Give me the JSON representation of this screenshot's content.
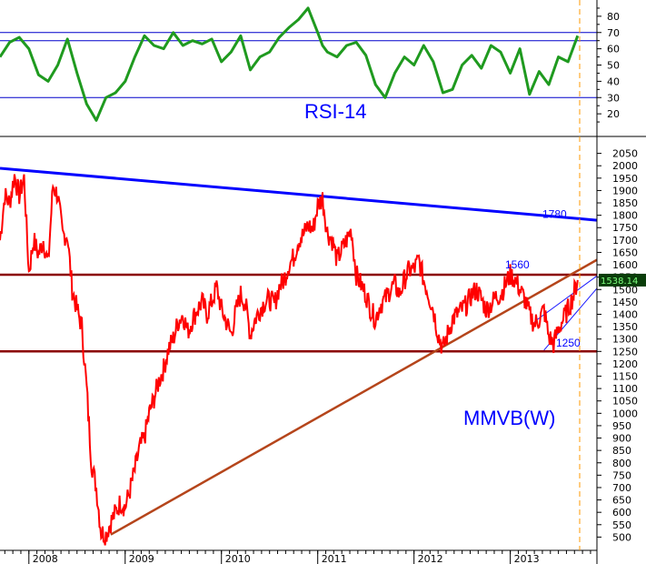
{
  "colors": {
    "rsi_line": "#1f9a1f",
    "price_line": "#ff0000",
    "resistance_line": "#0000ff",
    "level_lines": "#8b0000",
    "trend_line": "#b5451b",
    "channel_lines": "#1a1aff",
    "rsi_levels": "#0000cc",
    "last_price_bg": "#0a3d0a",
    "last_price_fg": "#7fff7f",
    "label_color": "#0000ff",
    "vertical_marker": "#ff9900"
  },
  "chart_data": [
    {
      "type": "line",
      "title": "RSI-14",
      "ylim": [
        10,
        90
      ],
      "yticks": [
        20,
        30,
        40,
        50,
        60,
        70,
        80
      ],
      "levels": [
        30,
        65,
        70
      ],
      "x_range": [
        2007.7,
        2013.9
      ],
      "series": [
        {
          "x": [
            2007.7,
            2007.8,
            2007.9,
            2008.0,
            2008.1,
            2008.2,
            2008.3,
            2008.4,
            2008.5,
            2008.6,
            2008.7,
            2008.8,
            2008.9,
            2009.0,
            2009.1,
            2009.2,
            2009.3,
            2009.4,
            2009.5,
            2009.6,
            2009.7,
            2009.8,
            2009.9,
            2010.0,
            2010.1,
            2010.2,
            2010.3,
            2010.4,
            2010.5,
            2010.6,
            2010.7,
            2010.8,
            2010.9,
            2011.0,
            2011.05,
            2011.1,
            2011.2,
            2011.3,
            2011.4,
            2011.5,
            2011.6,
            2011.7,
            2011.8,
            2011.9,
            2012.0,
            2012.1,
            2012.2,
            2012.3,
            2012.4,
            2012.5,
            2012.6,
            2012.7,
            2012.8,
            2012.9,
            2013.0,
            2013.1,
            2013.2,
            2013.3,
            2013.4,
            2013.5,
            2013.6,
            2013.7
          ],
          "values": [
            55,
            64,
            67,
            60,
            44,
            40,
            50,
            66,
            45,
            26,
            16,
            30,
            33,
            40,
            55,
            68,
            62,
            60,
            70,
            62,
            65,
            63,
            66,
            52,
            58,
            68,
            47,
            55,
            58,
            67,
            73,
            78,
            85,
            70,
            62,
            58,
            55,
            62,
            64,
            56,
            38,
            30,
            45,
            55,
            50,
            62,
            52,
            33,
            35,
            50,
            56,
            48,
            62,
            58,
            45,
            60,
            32,
            46,
            38,
            55,
            52,
            68
          ]
        }
      ]
    },
    {
      "type": "line",
      "title": "MMVB(W)",
      "ylim": [
        450,
        2100
      ],
      "yticks": [
        500,
        550,
        600,
        650,
        700,
        750,
        800,
        850,
        900,
        950,
        1000,
        1050,
        1100,
        1150,
        1200,
        1250,
        1300,
        1350,
        1400,
        1450,
        1500,
        1550,
        1600,
        1650,
        1700,
        1750,
        1800,
        1850,
        1900,
        1950,
        2000,
        2050
      ],
      "x_range": [
        2007.7,
        2013.9
      ],
      "x_tick_labels": [
        "2008",
        "2009",
        "2010",
        "2011",
        "2012",
        "2013"
      ],
      "x_ticks": [
        2008.0,
        2009.0,
        2010.0,
        2011.0,
        2012.0,
        2013.0
      ],
      "last_value": "1538.14",
      "annotations": [
        "1780",
        "1560",
        "1250"
      ],
      "levels": [
        1560,
        1250
      ],
      "resistance": {
        "x": [
          2007.7,
          2013.9
        ],
        "y": [
          1990,
          1780
        ]
      },
      "trend": {
        "x": [
          2008.85,
          2013.9
        ],
        "y": [
          510,
          1620
        ]
      },
      "channel_upper": {
        "x": [
          2013.25,
          2013.9
        ],
        "y": [
          1370,
          1555
        ]
      },
      "channel_lower": {
        "x": [
          2013.35,
          2013.9
        ],
        "y": [
          1255,
          1505
        ]
      },
      "series": [
        {
          "x": [
            2007.7,
            2007.75,
            2007.8,
            2007.85,
            2007.9,
            2007.95,
            2008.0,
            2008.05,
            2008.1,
            2008.15,
            2008.2,
            2008.25,
            2008.3,
            2008.35,
            2008.4,
            2008.45,
            2008.5,
            2008.55,
            2008.6,
            2008.65,
            2008.7,
            2008.75,
            2008.8,
            2008.85,
            2008.9,
            2008.95,
            2009.0,
            2009.05,
            2009.1,
            2009.15,
            2009.2,
            2009.25,
            2009.3,
            2009.35,
            2009.4,
            2009.45,
            2009.5,
            2009.55,
            2009.6,
            2009.65,
            2009.7,
            2009.75,
            2009.8,
            2009.85,
            2009.9,
            2009.95,
            2010.0,
            2010.05,
            2010.1,
            2010.15,
            2010.2,
            2010.25,
            2010.3,
            2010.35,
            2010.4,
            2010.45,
            2010.5,
            2010.55,
            2010.6,
            2010.65,
            2010.7,
            2010.75,
            2010.8,
            2010.85,
            2010.9,
            2010.95,
            2011.0,
            2011.05,
            2011.1,
            2011.15,
            2011.2,
            2011.25,
            2011.3,
            2011.35,
            2011.4,
            2011.45,
            2011.5,
            2011.55,
            2011.6,
            2011.65,
            2011.7,
            2011.75,
            2011.8,
            2011.85,
            2011.9,
            2011.95,
            2012.0,
            2012.05,
            2012.1,
            2012.15,
            2012.2,
            2012.25,
            2012.3,
            2012.35,
            2012.4,
            2012.45,
            2012.5,
            2012.55,
            2012.6,
            2012.65,
            2012.7,
            2012.75,
            2012.8,
            2012.85,
            2012.9,
            2012.95,
            2013.0,
            2013.05,
            2013.1,
            2013.15,
            2013.2,
            2013.25,
            2013.3,
            2013.35,
            2013.4,
            2013.45,
            2013.5,
            2013.55,
            2013.6,
            2013.65,
            2013.7
          ],
          "values": [
            1700,
            1880,
            1850,
            1960,
            1880,
            1950,
            1570,
            1700,
            1640,
            1700,
            1600,
            1920,
            1880,
            1720,
            1720,
            1500,
            1420,
            1350,
            1100,
            800,
            700,
            520,
            510,
            560,
            600,
            640,
            620,
            690,
            770,
            860,
            900,
            1000,
            1060,
            1130,
            1180,
            1260,
            1300,
            1370,
            1400,
            1330,
            1380,
            1420,
            1450,
            1400,
            1450,
            1510,
            1420,
            1370,
            1320,
            1410,
            1480,
            1440,
            1320,
            1380,
            1420,
            1450,
            1460,
            1440,
            1510,
            1540,
            1600,
            1630,
            1700,
            1720,
            1760,
            1740,
            1840,
            1870,
            1730,
            1700,
            1620,
            1660,
            1700,
            1740,
            1560,
            1520,
            1480,
            1420,
            1380,
            1440,
            1460,
            1500,
            1520,
            1480,
            1540,
            1580,
            1580,
            1620,
            1540,
            1480,
            1420,
            1320,
            1260,
            1320,
            1380,
            1400,
            1420,
            1440,
            1480,
            1500,
            1460,
            1420,
            1440,
            1470,
            1480,
            1520,
            1560,
            1540,
            1500,
            1460,
            1400,
            1360,
            1380,
            1420,
            1310,
            1280,
            1340,
            1380,
            1420,
            1470,
            1538
          ]
        }
      ]
    }
  ]
}
